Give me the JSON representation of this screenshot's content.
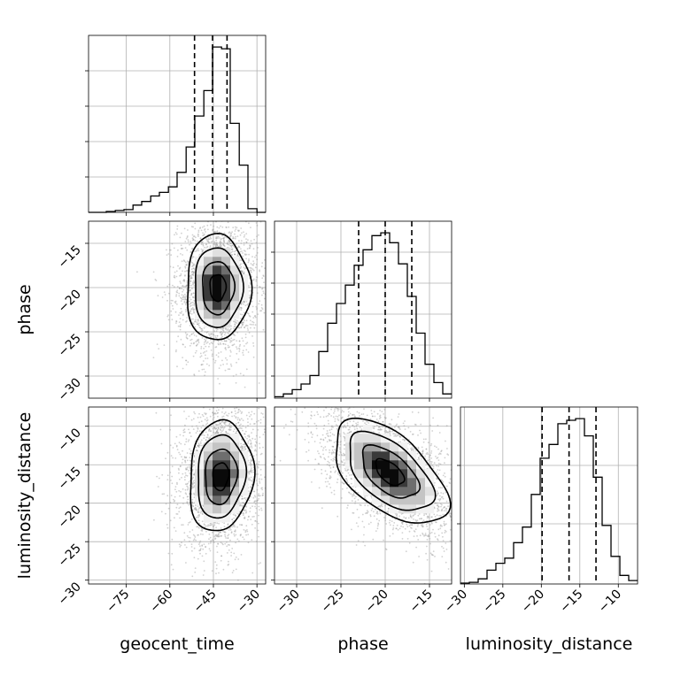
{
  "chart_data": {
    "type": "corner",
    "parameters": [
      "geocent_time",
      "phase",
      "luminosity_distance"
    ],
    "axis_labels": {
      "x": [
        "geocent_time",
        "phase",
        "luminosity_distance"
      ],
      "y": [
        "",
        "phase",
        "luminosity_distance"
      ]
    },
    "ranges": {
      "geocent_time": [
        -88,
        -27
      ],
      "phase": [
        -32.5,
        -12.5
      ],
      "luminosity_distance": [
        -30.5,
        -7.5
      ]
    },
    "ticks": {
      "geocent_time": [
        -75,
        -60,
        -45,
        -30
      ],
      "phase": [
        -30,
        -25,
        -20,
        -15
      ],
      "luminosity_distance": [
        -30,
        -25,
        -20,
        -15,
        -10
      ]
    },
    "tick_labels": {
      "geocent_time": [
        "−75",
        "−60",
        "−45",
        "−30"
      ],
      "phase": [
        "−30",
        "−25",
        "−20",
        "−15"
      ],
      "luminosity_distance": [
        "−30",
        "−25",
        "−20",
        "−15",
        "−10"
      ]
    },
    "y_tick_labels_left": {
      "phase": [
        "−15",
        "−20",
        "−25",
        "−30"
      ],
      "luminosity_distance": [
        "−10",
        "−15",
        "−20",
        "−25",
        "−30"
      ]
    },
    "histograms": {
      "geocent_time": {
        "edges": [
          -88,
          -84.9,
          -81.9,
          -78.8,
          -75.8,
          -72.7,
          -69.7,
          -66.6,
          -63.6,
          -60.5,
          -57.5,
          -54.4,
          -51.4,
          -48.3,
          -45.3,
          -42.2,
          -39.2,
          -36.1,
          -33.1,
          -30,
          -27
        ],
        "counts": [
          0,
          0,
          0.5,
          1,
          1.5,
          4,
          6,
          9,
          11,
          14,
          22,
          36,
          53,
          67,
          91,
          90,
          49,
          26,
          2,
          0
        ],
        "quantiles": [
          -51.5,
          -45.3,
          -40.3
        ]
      },
      "phase": {
        "edges": [
          -32.5,
          -31.5,
          -30.5,
          -29.5,
          -28.5,
          -27.5,
          -26.5,
          -25.5,
          -24.5,
          -23.5,
          -22.5,
          -21.5,
          -20.5,
          -19.5,
          -18.5,
          -17.5,
          -16.5,
          -15.5,
          -14.5,
          -13.5,
          -12.5
        ],
        "counts": [
          1,
          3,
          6,
          10,
          16,
          33,
          53,
          67,
          80,
          94,
          105,
          115,
          117,
          110,
          95,
          72,
          46,
          24,
          11,
          3
        ],
        "quantiles": [
          -23.0,
          -20.0,
          -17.0
        ]
      },
      "luminosity_distance": {
        "edges": [
          -30.5,
          -29.35,
          -28.2,
          -27.05,
          -25.9,
          -24.75,
          -23.6,
          -22.45,
          -21.3,
          -20.15,
          -19.0,
          -17.85,
          -16.7,
          -15.55,
          -14.4,
          -13.25,
          -12.1,
          -10.95,
          -9.8,
          -8.65,
          -7.5
        ],
        "counts": [
          0.5,
          1,
          3,
          8,
          12,
          15,
          24,
          33,
          52,
          73,
          81,
          93,
          95,
          96,
          86,
          62,
          34,
          16,
          5,
          2
        ],
        "quantiles": [
          -19.9,
          -16.4,
          -12.9
        ]
      }
    },
    "density_2d": [
      {
        "x": "geocent_time",
        "y": "phase",
        "center": [
          -43.5,
          -20.0
        ],
        "sigma": [
          5.5,
          3.0
        ],
        "rho": 0.0
      },
      {
        "x": "geocent_time",
        "y": "luminosity_distance",
        "center": [
          -42.5,
          -16.5
        ],
        "sigma": [
          5.5,
          3.6
        ],
        "rho": 0.1
      },
      {
        "x": "phase",
        "y": "luminosity_distance",
        "center": [
          -19.5,
          -16.0
        ],
        "sigma": [
          3.2,
          3.4
        ],
        "rho": -0.55
      }
    ]
  }
}
